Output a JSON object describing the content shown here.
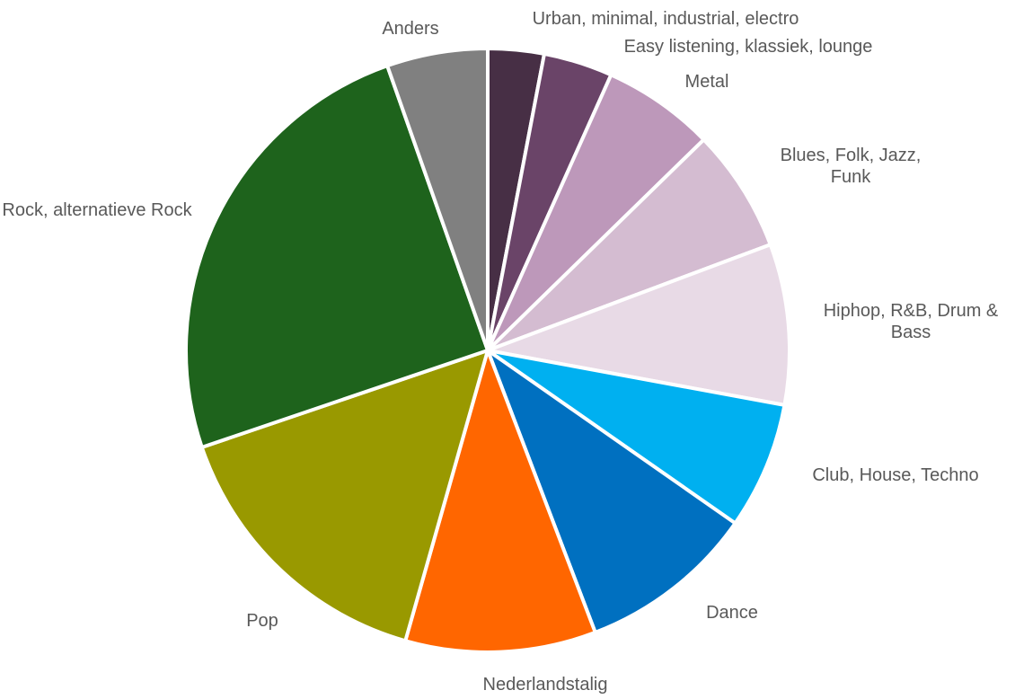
{
  "chart_data": {
    "type": "pie",
    "title": "",
    "legend": "none",
    "start_angle_deg": 0,
    "direction": "clockwise",
    "slices": [
      {
        "label": "Urban, minimal, industrial, electro",
        "value": 3.0,
        "color": "#472F45"
      },
      {
        "label": "Easy listening, klassiek, lounge",
        "value": 3.7,
        "color": "#6A4468"
      },
      {
        "label": "Metal",
        "value": 6.0,
        "color": "#BD98BA"
      },
      {
        "label": "Blues, Folk, Jazz, Funk",
        "value": 6.6,
        "color": "#D4BCD1"
      },
      {
        "label": "Hiphop, R&B, Drum & Bass",
        "value": 8.6,
        "color": "#E8DAE6"
      },
      {
        "label": "Club, House, Techno",
        "value": 6.8,
        "color": "#00B0F0"
      },
      {
        "label": "Dance",
        "value": 9.5,
        "color": "#0070C0"
      },
      {
        "label": "Nederlandstalig",
        "value": 10.2,
        "color": "#FF6600"
      },
      {
        "label": "Pop",
        "value": 15.4,
        "color": "#999900"
      },
      {
        "label": "Rock, alternatieve Rock",
        "value": 24.8,
        "color": "#1E631C"
      },
      {
        "label": "Anders",
        "value": 5.4,
        "color": "#808080"
      }
    ]
  }
}
